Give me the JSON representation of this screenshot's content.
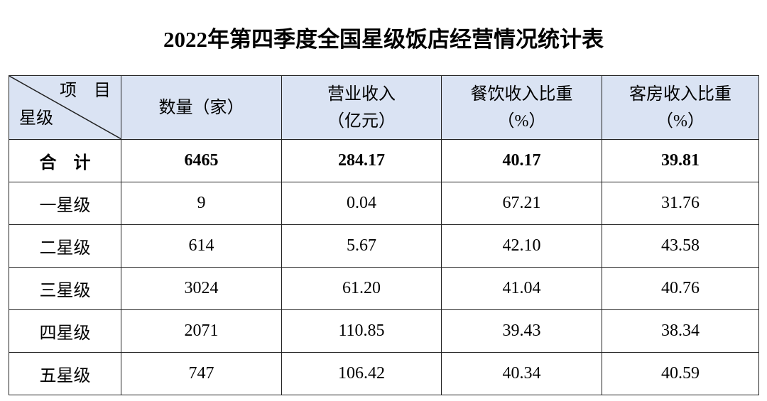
{
  "title": "2022年第四季度全国星级饭店经营情况统计表",
  "table": {
    "corner": {
      "top": "项　目",
      "bottom": "星级"
    },
    "columns": [
      {
        "lines": [
          "数量（家）"
        ]
      },
      {
        "lines": [
          "营业收入",
          "（亿元）"
        ]
      },
      {
        "lines": [
          "餐饮收入比重",
          "（%）"
        ]
      },
      {
        "lines": [
          "客房收入比重",
          "（%）"
        ]
      }
    ],
    "total": [
      "合　计",
      "6465",
      "284.17",
      "40.17",
      "39.81"
    ],
    "rows": [
      [
        "一星级",
        "9",
        "0.04",
        "67.21",
        "31.76"
      ],
      [
        "二星级",
        "614",
        "5.67",
        "42.10",
        "43.58"
      ],
      [
        "三星级",
        "3024",
        "61.20",
        "41.04",
        "40.76"
      ],
      [
        "四星级",
        "2071",
        "110.85",
        "39.43",
        "38.34"
      ],
      [
        "五星级",
        "747",
        "106.42",
        "40.34",
        "40.59"
      ]
    ]
  }
}
